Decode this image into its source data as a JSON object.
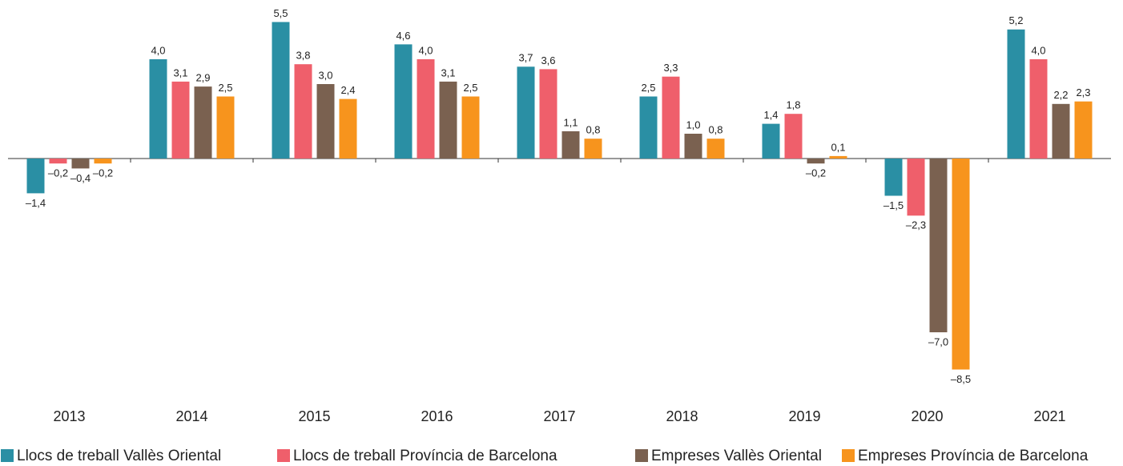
{
  "chart_data": {
    "type": "bar",
    "categories": [
      "2013",
      "2014",
      "2015",
      "2016",
      "2017",
      "2018",
      "2019",
      "2020",
      "2021"
    ],
    "series": [
      {
        "name": "Llocs de treball Vallès Oriental",
        "color": "#2a8fa4",
        "values": [
          -1.4,
          4.0,
          5.5,
          4.6,
          3.7,
          2.5,
          1.4,
          -1.5,
          5.2
        ],
        "value_labels": [
          "–1,4",
          "4,0",
          "5,5",
          "4,6",
          "3,7",
          "2,5",
          "1,4",
          "–1,5",
          "5,2"
        ]
      },
      {
        "name": "Llocs de treball Província de Barcelona",
        "color": "#ef5f6b",
        "values": [
          -0.2,
          3.1,
          3.8,
          4.0,
          3.6,
          3.3,
          1.8,
          -2.3,
          4.0
        ],
        "value_labels": [
          "–0,2",
          "3,1",
          "3,8",
          "4,0",
          "3,6",
          "3,3",
          "1,8",
          "–2,3",
          "4,0"
        ]
      },
      {
        "name": "Empreses Vallès Oriental",
        "color": "#7a6150",
        "values": [
          -0.4,
          2.9,
          3.0,
          3.1,
          1.1,
          1.0,
          -0.2,
          -7.0,
          2.2
        ],
        "value_labels": [
          "–0,4",
          "2,9",
          "3,0",
          "3,1",
          "1,1",
          "1,0",
          "–0,2",
          "–7,0",
          "2,2"
        ]
      },
      {
        "name": "Empreses Província de Barcelona",
        "color": "#f7941d",
        "values": [
          -0.2,
          2.5,
          2.4,
          2.5,
          0.8,
          0.8,
          0.1,
          -8.5,
          2.3
        ],
        "value_labels": [
          "–0,2",
          "2,5",
          "2,4",
          "2,5",
          "0,8",
          "0,8",
          "0,1",
          "–8,5",
          "2,3"
        ]
      }
    ],
    "ylim": [
      -9,
      6
    ],
    "legend": "bottom"
  }
}
